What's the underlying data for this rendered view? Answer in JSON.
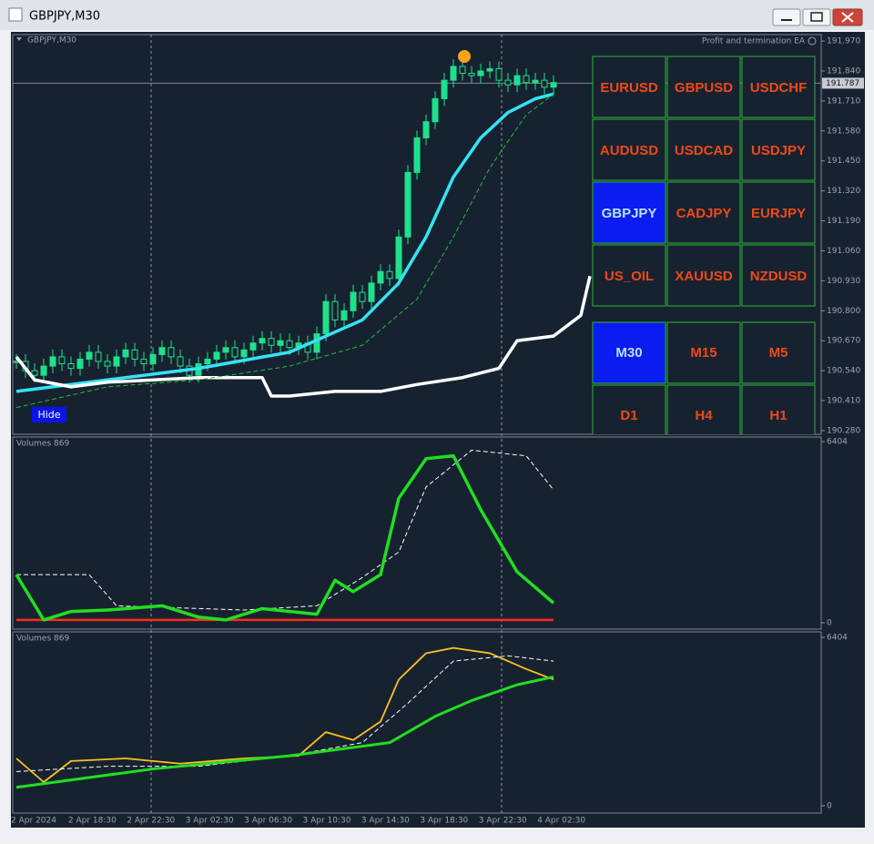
{
  "window": {
    "title": "GBPJPY,M30"
  },
  "chart": {
    "symbol_label": "GBPJPY,M30",
    "ea_label": "Profit and termination EA",
    "current_price": {
      "value": 191.787,
      "label": "191.787"
    },
    "ylim": [
      190.264,
      191.998
    ],
    "yticks": [
      {
        "value": 191.97,
        "label": "191.970"
      },
      {
        "value": 191.84,
        "label": "191.840"
      },
      {
        "value": 191.71,
        "label": "191.710"
      },
      {
        "value": 191.58,
        "label": "191.580"
      },
      {
        "value": 191.45,
        "label": "191.450"
      },
      {
        "value": 191.32,
        "label": "191.320"
      },
      {
        "value": 191.19,
        "label": "191.190"
      },
      {
        "value": 191.06,
        "label": "191.060"
      },
      {
        "value": 190.93,
        "label": "190.930"
      },
      {
        "value": 190.8,
        "label": "190.800"
      },
      {
        "value": 190.67,
        "label": "190.670"
      },
      {
        "value": 190.54,
        "label": "190.540"
      },
      {
        "value": 190.41,
        "label": "190.410"
      },
      {
        "value": 190.28,
        "label": "190.280"
      }
    ],
    "closes": [
      190.58,
      190.54,
      190.52,
      190.56,
      190.6,
      190.57,
      190.55,
      190.59,
      190.62,
      190.58,
      190.56,
      190.6,
      190.63,
      190.59,
      190.57,
      190.61,
      190.64,
      190.6,
      190.56,
      190.52,
      190.57,
      190.59,
      190.62,
      190.64,
      190.6,
      190.63,
      190.66,
      190.68,
      190.65,
      190.67,
      190.64,
      190.66,
      190.62,
      190.7,
      190.84,
      190.76,
      190.8,
      190.88,
      190.84,
      190.92,
      190.97,
      190.94,
      191.12,
      191.4,
      191.55,
      191.62,
      191.72,
      191.8,
      191.86,
      191.83,
      191.82,
      191.84,
      191.85,
      191.8,
      191.78,
      191.82,
      191.79,
      191.8,
      191.77,
      191.79
    ],
    "candle_color": "#1fe08c",
    "lines": [
      {
        "color": "#35e3f5",
        "width": 3.5,
        "x": [
          0,
          10,
          20,
          30,
          38,
          42,
          45,
          48,
          51,
          54,
          57,
          59
        ],
        "values": [
          190.45,
          190.5,
          190.55,
          190.62,
          190.76,
          190.92,
          191.12,
          191.38,
          191.55,
          191.66,
          191.72,
          191.74
        ]
      },
      {
        "color": "#ffffff",
        "width": 3.5,
        "x": [
          0,
          2,
          6,
          10,
          20,
          27,
          28,
          30,
          35,
          40,
          44,
          49,
          53,
          55,
          59,
          62,
          63
        ],
        "values": [
          190.6,
          190.5,
          190.47,
          190.49,
          190.51,
          190.51,
          190.43,
          190.43,
          190.45,
          190.45,
          190.48,
          190.51,
          190.55,
          190.67,
          190.69,
          190.78,
          190.95
        ]
      },
      {
        "color": "#22c03a",
        "width": 1,
        "dash": true,
        "x": [
          0,
          10,
          20,
          30,
          38,
          44,
          48,
          52,
          56,
          59
        ],
        "values": [
          190.38,
          190.47,
          190.5,
          190.56,
          190.65,
          190.85,
          191.12,
          191.42,
          191.65,
          191.74
        ]
      }
    ]
  },
  "hide_button": "Hide",
  "symbol_buttons": [
    {
      "label": "EURUSD"
    },
    {
      "label": "GBPUSD"
    },
    {
      "label": "USDCHF"
    },
    {
      "label": "AUDUSD"
    },
    {
      "label": "USDCAD"
    },
    {
      "label": "USDJPY"
    },
    {
      "label": "GBPJPY",
      "active": true
    },
    {
      "label": "CADJPY"
    },
    {
      "label": "EURJPY"
    },
    {
      "label": "US_OIL"
    },
    {
      "label": "XAUUSD"
    },
    {
      "label": "NZDUSD"
    }
  ],
  "timeframe_buttons": [
    {
      "label": "M30",
      "active": true
    },
    {
      "label": "M15"
    },
    {
      "label": "M5"
    },
    {
      "label": "D1"
    },
    {
      "label": "H4"
    },
    {
      "label": "H1"
    }
  ],
  "volume_panels": [
    {
      "label": "Volumes 869",
      "ylim": [
        0,
        6404
      ],
      "yticks": [
        6404,
        0
      ],
      "lines": [
        {
          "color": "#ffffff",
          "width": 1,
          "dash": true,
          "x": [
            0,
            8,
            11,
            25,
            33,
            38,
            42,
            45,
            50,
            56,
            59
          ],
          "values": [
            1700,
            1700,
            600,
            450,
            600,
            1600,
            2500,
            4800,
            6100,
            5900,
            4700
          ]
        },
        {
          "color": "#ff2a1a",
          "width": 2.5,
          "x": [
            0,
            59
          ],
          "values": [
            100,
            100
          ]
        },
        {
          "color": "#22dd22",
          "width": 3.5,
          "x": [
            0,
            3,
            6,
            10,
            16,
            20,
            23,
            27,
            33,
            35,
            37,
            40,
            42,
            45,
            48,
            51,
            55,
            59
          ],
          "values": [
            1700,
            100,
            400,
            450,
            600,
            200,
            100,
            500,
            300,
            1500,
            1100,
            1700,
            4400,
            5800,
            5900,
            4000,
            1800,
            700
          ]
        }
      ]
    },
    {
      "label": "Volumes 869",
      "ylim": [
        0,
        6404
      ],
      "yticks": [
        6404,
        0
      ],
      "lines": [
        {
          "color": "#ffc020",
          "width": 1.8,
          "x": [
            0,
            3,
            6,
            12,
            18,
            25,
            31,
            34,
            37,
            40,
            42,
            45,
            48,
            52,
            56,
            59
          ],
          "values": [
            1800,
            900,
            1700,
            1800,
            1600,
            1800,
            1900,
            2800,
            2500,
            3200,
            4800,
            5800,
            6000,
            5800,
            5200,
            4800
          ]
        },
        {
          "color": "#ffffff",
          "width": 1,
          "dash": true,
          "x": [
            0,
            10,
            20,
            30,
            38,
            43,
            48,
            54,
            59
          ],
          "values": [
            1300,
            1500,
            1500,
            1900,
            2400,
            3900,
            5500,
            5700,
            5500
          ]
        },
        {
          "color": "#22dd22",
          "width": 3,
          "x": [
            0,
            15,
            30,
            41,
            46,
            50,
            55,
            59
          ],
          "values": [
            700,
            1400,
            1900,
            2400,
            3400,
            4000,
            4600,
            4900
          ]
        }
      ]
    }
  ],
  "x_labels": [
    "2 Apr 2024",
    "2 Apr 18:30",
    "2 Apr 22:30",
    "3 Apr 02:30",
    "3 Apr 06:30",
    "3 Apr 10:30",
    "3 Apr 14:30",
    "3 Apr 18:30",
    "3 Apr 22:30",
    "4 Apr 02:30"
  ]
}
